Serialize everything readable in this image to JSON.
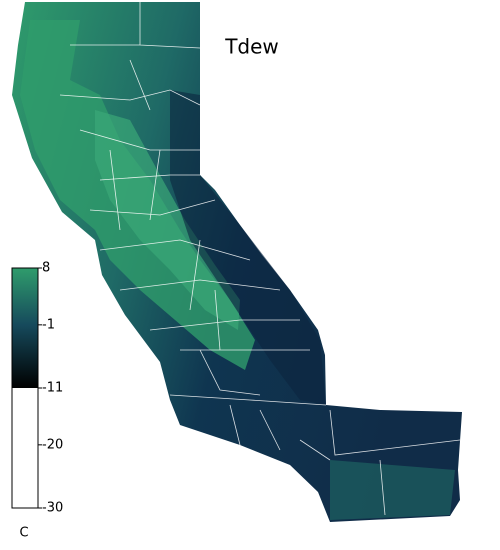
{
  "map": {
    "title": "Tdew",
    "colorbar": {
      "unit": "C",
      "ticks": [
        8,
        -1,
        -11,
        -20,
        -30
      ],
      "clim": [
        -30,
        8
      ],
      "colormap": {
        "values": [
          8,
          -1,
          -11,
          -11,
          -30
        ],
        "colors": [
          "#2f9c6c",
          "#164a5c",
          "#000000",
          "#ffffff",
          "#ffffff"
        ]
      }
    }
  }
}
